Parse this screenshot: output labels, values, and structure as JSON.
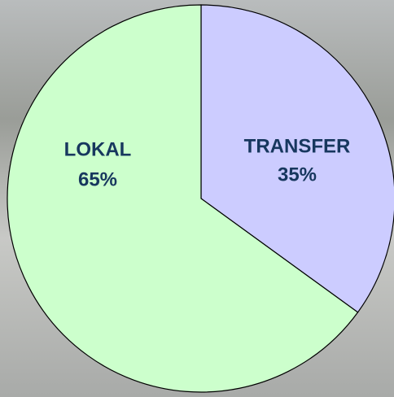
{
  "chart_data": {
    "type": "pie",
    "categories": [
      "TRANSFER",
      "LOKAL"
    ],
    "values": [
      35,
      65
    ],
    "value_labels": [
      "35%",
      "65%"
    ],
    "colors": [
      "#ccccff",
      "#ccffcc"
    ]
  }
}
